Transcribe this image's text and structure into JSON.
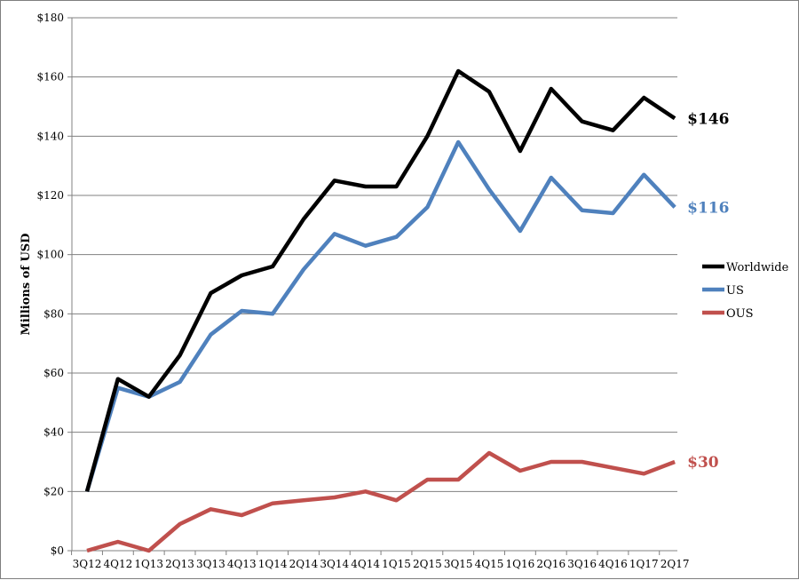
{
  "chart_data": {
    "type": "line",
    "title": "",
    "xlabel": "",
    "ylabel": "Millions of USD",
    "ylim": [
      0,
      180
    ],
    "yticks": [
      0,
      20,
      40,
      60,
      80,
      100,
      120,
      140,
      160,
      180
    ],
    "ytick_labels": [
      "$0",
      "$20",
      "$40",
      "$60",
      "$80",
      "$100",
      "$120",
      "$140",
      "$160",
      "$180"
    ],
    "grid": true,
    "legend_position": "right",
    "categories": [
      "3Q12",
      "4Q12",
      "1Q13",
      "2Q13",
      "3Q13",
      "4Q13",
      "1Q14",
      "2Q14",
      "3Q14",
      "4Q14",
      "1Q15",
      "2Q15",
      "3Q15",
      "4Q15",
      "1Q16",
      "2Q16",
      "3Q16",
      "4Q16",
      "1Q17",
      "2Q17"
    ],
    "series": [
      {
        "name": "Worldwide",
        "color": "#000000",
        "values": [
          20,
          58,
          52,
          66,
          87,
          93,
          96,
          112,
          125,
          123,
          123,
          140,
          162,
          155,
          135,
          156,
          145,
          142,
          153,
          146
        ],
        "end_label": "$146"
      },
      {
        "name": "US",
        "color": "#4f81bd",
        "values": [
          20,
          55,
          52,
          57,
          73,
          81,
          80,
          95,
          107,
          103,
          106,
          116,
          138,
          122,
          108,
          126,
          115,
          114,
          127,
          116
        ],
        "end_label": "$116"
      },
      {
        "name": "OUS",
        "color": "#c0504d",
        "values": [
          0,
          3,
          0,
          9,
          14,
          12,
          16,
          17,
          18,
          20,
          17,
          24,
          24,
          33,
          27,
          30,
          30,
          28,
          26,
          30
        ],
        "end_label": "$30"
      }
    ]
  }
}
